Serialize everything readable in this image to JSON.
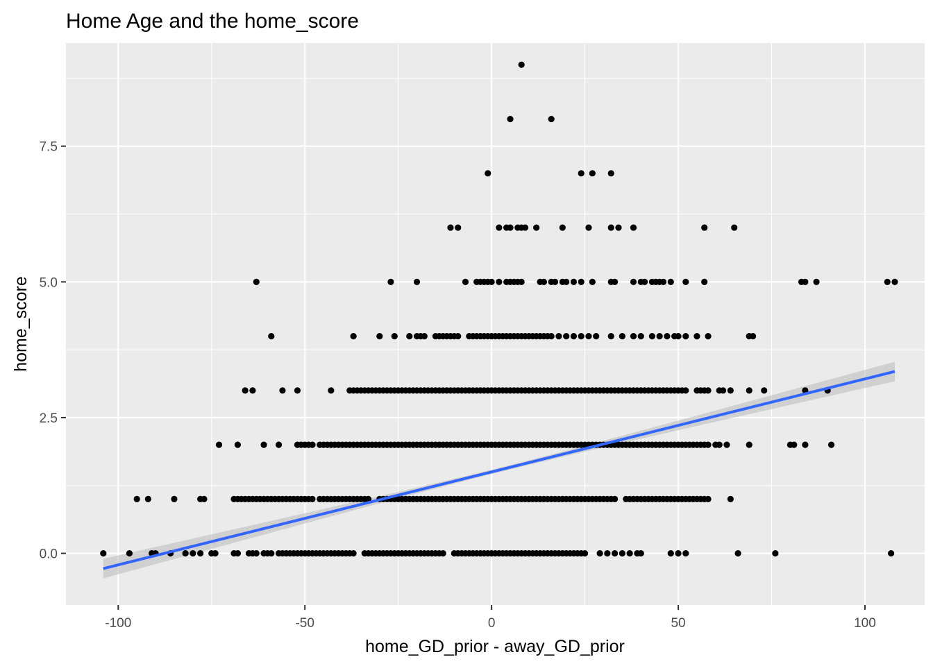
{
  "chart_data": {
    "type": "scatter",
    "title": "Home Age and the home_score",
    "xlabel": "home_GD_prior - away_GD_prior",
    "ylabel": "home_score",
    "xlim": [
      -114,
      116
    ],
    "ylim": [
      -0.95,
      9.4
    ],
    "x_ticks": [
      -100,
      -50,
      0,
      50,
      100
    ],
    "x_tick_labels": [
      "-100",
      "-50",
      "0",
      "50",
      "100"
    ],
    "y_ticks": [
      0,
      2.5,
      5,
      7.5
    ],
    "y_tick_labels": [
      "0.0",
      "2.5",
      "5.0",
      "7.5"
    ],
    "grid": true,
    "legend": "none",
    "colors": {
      "panel": "#ebebeb",
      "grid": "#ffffff",
      "point": "#000000",
      "fit_line": "#3366ff",
      "ribbon": "#bebebe"
    },
    "series": [
      {
        "type": "points",
        "groups": [
          {
            "y": 0,
            "x": [
              -104,
              -97,
              -91,
              -90,
              -86,
              -82,
              -80,
              -78,
              -75,
              -74,
              -69,
              -68,
              -65,
              -64,
              -63,
              -61,
              -60,
              -59,
              -57,
              -56
            ],
            "ranges": [
              [
                -56,
                -37
              ],
              [
                -34,
                -13
              ],
              [
                -10,
                25
              ]
            ],
            "extra_x": [
              29,
              31,
              33,
              35,
              37,
              39,
              40,
              48,
              50,
              52,
              66,
              76,
              107
            ]
          },
          {
            "y": 1,
            "x": [
              -95,
              -92,
              -85,
              -78,
              -77
            ],
            "ranges": [
              [
                -69,
                -60
              ],
              [
                -60,
                -48
              ],
              [
                -46,
                -44
              ],
              [
                -43,
                -33
              ],
              [
                -30,
                -2
              ],
              [
                -2,
                33
              ],
              [
                36,
                45
              ],
              [
                46,
                58
              ]
            ],
            "extra_x": [
              64
            ]
          },
          {
            "y": 2,
            "x": [
              -73,
              -68,
              -61,
              -57
            ],
            "ranges": [
              [
                -52,
                -48
              ],
              [
                -46,
                -36
              ],
              [
                -35,
                54
              ]
            ],
            "extra_x": [
              55,
              56,
              57,
              58,
              60,
              61,
              63,
              69,
              80,
              81,
              84,
              91
            ]
          },
          {
            "y": 3,
            "x": [
              -66,
              -64,
              -56,
              -52,
              -43
            ],
            "ranges": [
              [
                -38,
                -35
              ],
              [
                -34,
                52
              ]
            ],
            "extra_x": [
              55,
              56,
              57,
              58,
              61,
              62,
              64,
              69,
              73,
              84,
              90
            ]
          },
          {
            "y": 4,
            "x": [
              -59,
              -37,
              -30,
              -26,
              -22,
              -20,
              -19,
              -18
            ],
            "ranges": [
              [
                -15,
                -9
              ],
              [
                -6,
                16
              ]
            ],
            "extra_x": [
              18,
              20,
              22,
              24,
              26,
              28,
              32,
              35,
              38,
              40,
              43,
              45,
              47,
              49,
              50,
              52,
              55,
              58,
              69,
              70
            ]
          },
          {
            "y": 5,
            "x": [
              -63,
              -27,
              -20,
              -7,
              -4,
              -3,
              -2,
              -1,
              0,
              2,
              4,
              5,
              6,
              7,
              8,
              13,
              14,
              16,
              17,
              19,
              20,
              22,
              24,
              27,
              32,
              33,
              38,
              40,
              41,
              43,
              44,
              45,
              46,
              48,
              52,
              57,
              83,
              84,
              87,
              106,
              108
            ]
          },
          {
            "y": 6,
            "x": [
              -11,
              -9,
              2,
              4,
              5,
              7,
              8,
              9,
              12,
              19,
              26,
              32,
              34,
              38,
              57,
              65
            ]
          },
          {
            "y": 7,
            "x": [
              -1,
              24,
              27,
              32
            ]
          },
          {
            "y": 8,
            "x": [
              5,
              16
            ]
          },
          {
            "y": 9,
            "x": [
              8
            ]
          }
        ]
      },
      {
        "type": "smooth",
        "method": "lm",
        "x": [
          -104,
          108
        ],
        "y": [
          -0.28,
          3.35
        ],
        "ribbon_halfwidth_ends": 0.18,
        "ribbon_halfwidth_center": 0.04
      }
    ]
  }
}
